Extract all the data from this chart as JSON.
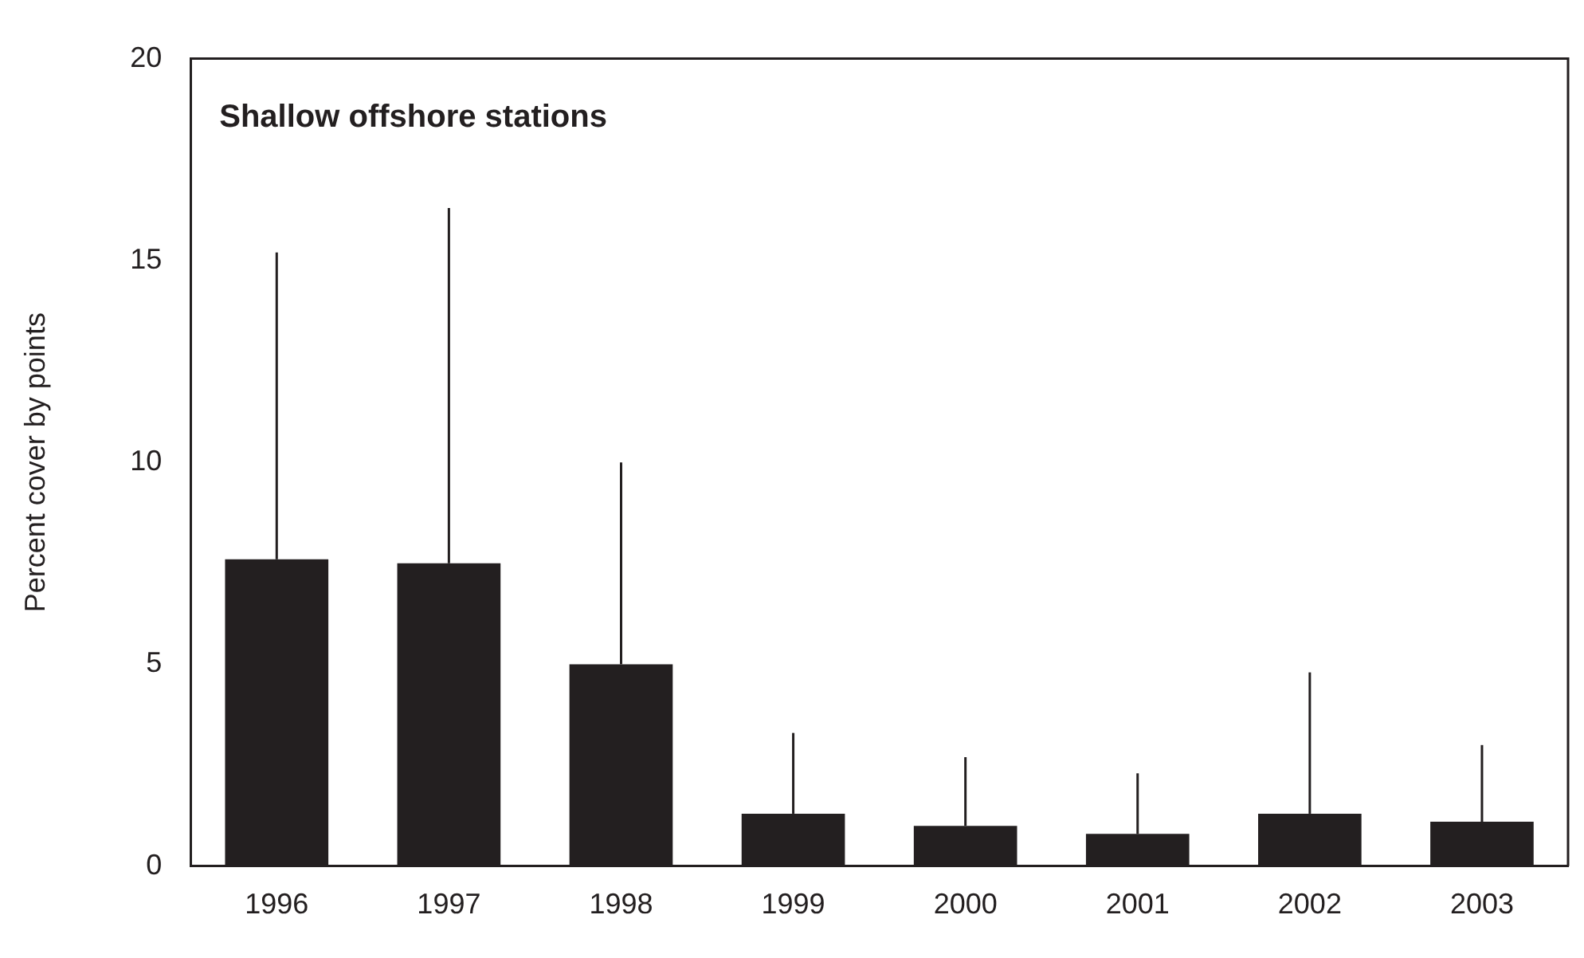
{
  "chart_data": {
    "type": "bar",
    "title": "Shallow offshore stations",
    "ylabel": "Percent cover by points",
    "categories": [
      "1996",
      "1997",
      "1998",
      "1999",
      "2000",
      "2001",
      "2002",
      "2003"
    ],
    "values": [
      7.6,
      7.5,
      5.0,
      1.3,
      1.0,
      0.8,
      1.3,
      1.1
    ],
    "errors": [
      [
        7.6,
        15.2
      ],
      [
        7.5,
        16.3
      ],
      [
        5.0,
        10.0
      ],
      [
        1.3,
        3.3
      ],
      [
        1.0,
        2.7
      ],
      [
        0.8,
        2.3
      ],
      [
        1.3,
        4.8
      ],
      [
        1.1,
        3.0
      ]
    ],
    "color": "#231f20",
    "ylim": [
      0,
      20
    ],
    "yticks": [
      0,
      5,
      10,
      15,
      20
    ],
    "grid": false,
    "legend": false
  }
}
